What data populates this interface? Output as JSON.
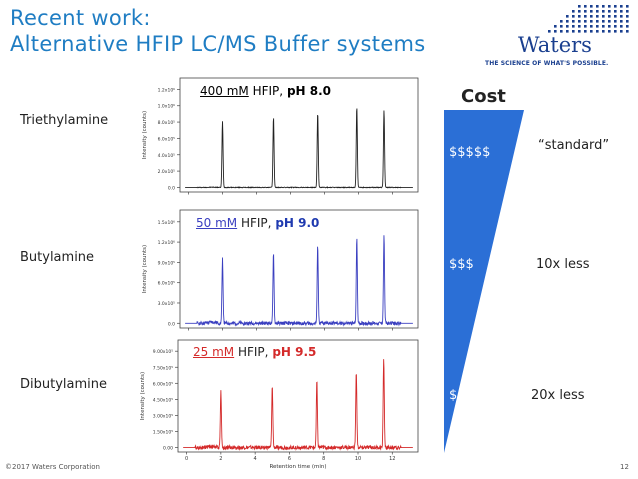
{
  "title": {
    "line1": "Recent work:",
    "line2": "Alternative HFIP LC/MS Buffer systems"
  },
  "logo": {
    "word": "Waters",
    "tagline": "THE SCIENCE OF WHAT'S POSSIBLE."
  },
  "rows": [
    {
      "compound": "Triethylamine",
      "conc": "400 mM",
      "reagent": "HFIP,",
      "ph": "pH 8.0",
      "color": "#222222",
      "ph_color": "#222222"
    },
    {
      "compound": "Butylamine",
      "conc": "50 mM",
      "reagent": "HFIP,",
      "ph": "pH 9.0",
      "color": "#3a3fc0",
      "ph_color": "#1f3ab0"
    },
    {
      "compound": "Dibutylamine",
      "conc": "25 mM",
      "reagent": "HFIP,",
      "ph": "pH 9.5",
      "color": "#d42a2a",
      "ph_color": "#d42a2a"
    }
  ],
  "chromatograms": {
    "y_axis_label": "Intensity (counts)",
    "x_axis_label": "Retention time (min)",
    "x_ticks": [
      "0",
      "2",
      "4",
      "6",
      "8",
      "10",
      "12"
    ],
    "panel1_y_ticks": [
      "0.0",
      "2.0x10⁵",
      "4.0x10⁵",
      "6.0x10⁵",
      "8.0x10⁵",
      "1.0x10⁶",
      "1.2x10⁶"
    ],
    "panel2_y_ticks": [
      "0.0",
      "3.0x10⁵",
      "6.0x10⁵",
      "9.0x10⁵",
      "1.2x10⁶",
      "1.5x10⁶"
    ],
    "panel3_y_ticks": [
      "0.00",
      "1.50x10⁵",
      "3.00x10⁵",
      "4.50x10⁵",
      "6.00x10⁵",
      "7.50x10⁵",
      "9.00x10⁵"
    ],
    "peaks_min": [
      2.0,
      5.0,
      7.6,
      9.9,
      11.5
    ]
  },
  "cost": {
    "title": "Cost",
    "levels": [
      {
        "label": "$$$$$",
        "note": "“standard”"
      },
      {
        "label": "$$$",
        "note": "10x less"
      },
      {
        "label": "$",
        "note": "20x less"
      }
    ],
    "color": "#2b6fd6"
  },
  "footer": {
    "copyright": "©2017 Waters Corporation",
    "page": "12"
  }
}
